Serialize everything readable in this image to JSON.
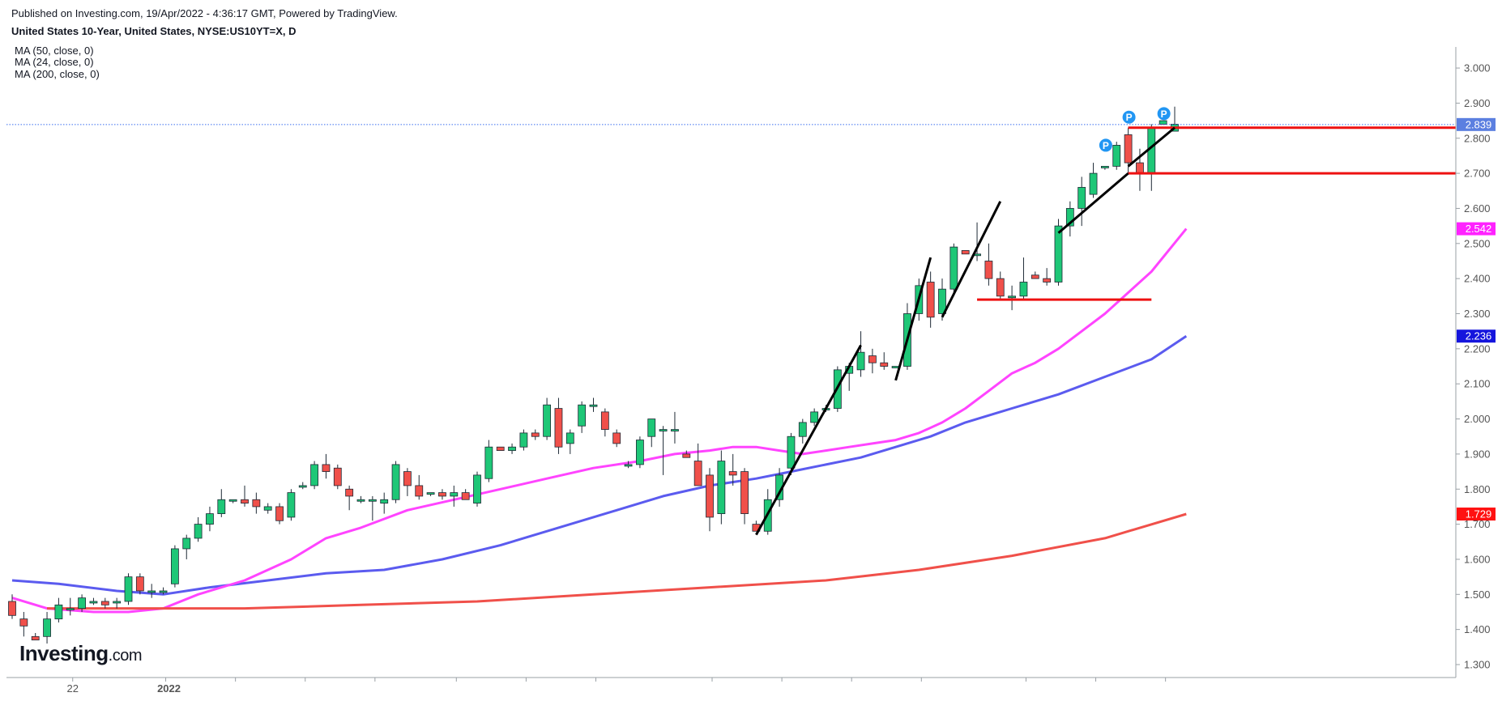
{
  "header": {
    "published": "Published on Investing.com, 19/Apr/2022 - 4:36:17 GMT, Powered by TradingView.",
    "title": "United States 10-Year, United States, NYSE:US10YT=X, D"
  },
  "legend": [
    {
      "label": "MA (50, close, 0)",
      "color": "#5b5bef"
    },
    {
      "label": "MA (24, close, 0)",
      "color": "#ff44ff"
    },
    {
      "label": "MA (200, close, 0)",
      "color": "#f0504a"
    }
  ],
  "logo": {
    "name": "Investing",
    "suffix": ".com"
  },
  "colors": {
    "up": "#1ec777",
    "down": "#f0504a",
    "wick": "#1e2a36",
    "ma50": "#5b5bef",
    "ma24": "#ff44ff",
    "ma200": "#f0504a",
    "hline": "#ee1111",
    "trend": "#000000",
    "pivot": "#2196f3",
    "axis": "#9aa0a6"
  },
  "chart_data": {
    "type": "candlestick",
    "title": "United States 10-Year, United States, NYSE:US10YT=X, D",
    "ylim": [
      1.26,
      3.06
    ],
    "y_ticks": [
      1.3,
      1.4,
      1.5,
      1.6,
      1.7,
      1.8,
      1.9,
      2.0,
      2.1,
      2.2,
      2.3,
      2.4,
      2.5,
      2.6,
      2.7,
      2.8,
      2.9,
      3.0
    ],
    "y_tick_labels": [
      "1.300",
      "1.400",
      "1.500",
      "1.600",
      "1.700",
      "1.800",
      "1.900",
      "2.000",
      "2.100",
      "2.200",
      "2.300",
      "2.400",
      "2.500",
      "2.600",
      "2.700",
      "2.800",
      "2.900",
      "3.000"
    ],
    "x_labels": [
      {
        "index": 5,
        "label": "22"
      },
      {
        "index": 13,
        "label": "2022"
      }
    ],
    "x_tick_indices": [
      5,
      13,
      19,
      25,
      31,
      38,
      44,
      50,
      60,
      66,
      72,
      78,
      87,
      93,
      99
    ],
    "candles": [
      {
        "o": 1.48,
        "h": 1.5,
        "l": 1.43,
        "c": 1.44
      },
      {
        "o": 1.43,
        "h": 1.45,
        "l": 1.38,
        "c": 1.41
      },
      {
        "o": 1.38,
        "h": 1.39,
        "l": 1.37,
        "c": 1.37
      },
      {
        "o": 1.38,
        "h": 1.45,
        "l": 1.36,
        "c": 1.43
      },
      {
        "o": 1.43,
        "h": 1.49,
        "l": 1.42,
        "c": 1.47
      },
      {
        "o": 1.46,
        "h": 1.49,
        "l": 1.44,
        "c": 1.46
      },
      {
        "o": 1.46,
        "h": 1.5,
        "l": 1.45,
        "c": 1.49
      },
      {
        "o": 1.48,
        "h": 1.49,
        "l": 1.47,
        "c": 1.48
      },
      {
        "o": 1.48,
        "h": 1.49,
        "l": 1.46,
        "c": 1.47
      },
      {
        "o": 1.48,
        "h": 1.49,
        "l": 1.46,
        "c": 1.48
      },
      {
        "o": 1.48,
        "h": 1.56,
        "l": 1.47,
        "c": 1.55
      },
      {
        "o": 1.55,
        "h": 1.56,
        "l": 1.5,
        "c": 1.51
      },
      {
        "o": 1.51,
        "h": 1.53,
        "l": 1.49,
        "c": 1.51
      },
      {
        "o": 1.51,
        "h": 1.52,
        "l": 1.5,
        "c": 1.51
      },
      {
        "o": 1.53,
        "h": 1.64,
        "l": 1.52,
        "c": 1.63
      },
      {
        "o": 1.63,
        "h": 1.67,
        "l": 1.6,
        "c": 1.66
      },
      {
        "o": 1.66,
        "h": 1.72,
        "l": 1.65,
        "c": 1.7
      },
      {
        "o": 1.7,
        "h": 1.75,
        "l": 1.68,
        "c": 1.73
      },
      {
        "o": 1.73,
        "h": 1.8,
        "l": 1.72,
        "c": 1.77
      },
      {
        "o": 1.77,
        "h": 1.77,
        "l": 1.76,
        "c": 1.77
      },
      {
        "o": 1.77,
        "h": 1.81,
        "l": 1.75,
        "c": 1.76
      },
      {
        "o": 1.77,
        "h": 1.79,
        "l": 1.73,
        "c": 1.75
      },
      {
        "o": 1.74,
        "h": 1.76,
        "l": 1.73,
        "c": 1.75
      },
      {
        "o": 1.75,
        "h": 1.76,
        "l": 1.7,
        "c": 1.71
      },
      {
        "o": 1.72,
        "h": 1.8,
        "l": 1.71,
        "c": 1.79
      },
      {
        "o": 1.81,
        "h": 1.82,
        "l": 1.8,
        "c": 1.81
      },
      {
        "o": 1.81,
        "h": 1.88,
        "l": 1.8,
        "c": 1.87
      },
      {
        "o": 1.87,
        "h": 1.9,
        "l": 1.83,
        "c": 1.85
      },
      {
        "o": 1.86,
        "h": 1.87,
        "l": 1.8,
        "c": 1.81
      },
      {
        "o": 1.8,
        "h": 1.81,
        "l": 1.74,
        "c": 1.78
      },
      {
        "o": 1.77,
        "h": 1.78,
        "l": 1.76,
        "c": 1.77
      },
      {
        "o": 1.77,
        "h": 1.78,
        "l": 1.71,
        "c": 1.77
      },
      {
        "o": 1.76,
        "h": 1.79,
        "l": 1.73,
        "c": 1.77
      },
      {
        "o": 1.77,
        "h": 1.88,
        "l": 1.76,
        "c": 1.87
      },
      {
        "o": 1.85,
        "h": 1.86,
        "l": 1.78,
        "c": 1.81
      },
      {
        "o": 1.81,
        "h": 1.84,
        "l": 1.77,
        "c": 1.78
      },
      {
        "o": 1.79,
        "h": 1.79,
        "l": 1.78,
        "c": 1.79
      },
      {
        "o": 1.79,
        "h": 1.8,
        "l": 1.77,
        "c": 1.78
      },
      {
        "o": 1.78,
        "h": 1.81,
        "l": 1.75,
        "c": 1.79
      },
      {
        "o": 1.79,
        "h": 1.8,
        "l": 1.77,
        "c": 1.77
      },
      {
        "o": 1.76,
        "h": 1.85,
        "l": 1.75,
        "c": 1.84
      },
      {
        "o": 1.83,
        "h": 1.94,
        "l": 1.82,
        "c": 1.92
      },
      {
        "o": 1.92,
        "h": 1.92,
        "l": 1.91,
        "c": 1.91
      },
      {
        "o": 1.91,
        "h": 1.93,
        "l": 1.9,
        "c": 1.92
      },
      {
        "o": 1.92,
        "h": 1.97,
        "l": 1.91,
        "c": 1.96
      },
      {
        "o": 1.96,
        "h": 1.97,
        "l": 1.94,
        "c": 1.95
      },
      {
        "o": 1.95,
        "h": 2.06,
        "l": 1.94,
        "c": 2.04
      },
      {
        "o": 2.03,
        "h": 2.06,
        "l": 1.9,
        "c": 1.92
      },
      {
        "o": 1.93,
        "h": 1.97,
        "l": 1.9,
        "c": 1.96
      },
      {
        "o": 1.98,
        "h": 2.05,
        "l": 1.96,
        "c": 2.04
      },
      {
        "o": 2.04,
        "h": 2.06,
        "l": 2.02,
        "c": 2.04
      },
      {
        "o": 2.02,
        "h": 2.03,
        "l": 1.95,
        "c": 1.97
      },
      {
        "o": 1.96,
        "h": 1.97,
        "l": 1.92,
        "c": 1.93
      },
      {
        "o": 1.87,
        "h": 1.88,
        "l": 1.86,
        "c": 1.87
      },
      {
        "o": 1.87,
        "h": 1.95,
        "l": 1.86,
        "c": 1.94
      },
      {
        "o": 1.95,
        "h": 2.0,
        "l": 1.92,
        "c": 2.0
      },
      {
        "o": 1.97,
        "h": 1.98,
        "l": 1.84,
        "c": 1.97
      },
      {
        "o": 1.97,
        "h": 2.02,
        "l": 1.93,
        "c": 1.97
      },
      {
        "o": 1.9,
        "h": 1.91,
        "l": 1.89,
        "c": 1.89
      },
      {
        "o": 1.88,
        "h": 1.93,
        "l": 1.82,
        "c": 1.81
      },
      {
        "o": 1.84,
        "h": 1.86,
        "l": 1.68,
        "c": 1.72
      },
      {
        "o": 1.73,
        "h": 1.91,
        "l": 1.7,
        "c": 1.88
      },
      {
        "o": 1.85,
        "h": 1.9,
        "l": 1.81,
        "c": 1.84
      },
      {
        "o": 1.85,
        "h": 1.86,
        "l": 1.7,
        "c": 1.73
      },
      {
        "o": 1.7,
        "h": 1.71,
        "l": 1.68,
        "c": 1.68
      },
      {
        "o": 1.68,
        "h": 1.8,
        "l": 1.67,
        "c": 1.77
      },
      {
        "o": 1.77,
        "h": 1.86,
        "l": 1.75,
        "c": 1.84
      },
      {
        "o": 1.86,
        "h": 1.96,
        "l": 1.84,
        "c": 1.95
      },
      {
        "o": 1.95,
        "h": 2.0,
        "l": 1.93,
        "c": 1.99
      },
      {
        "o": 1.99,
        "h": 2.03,
        "l": 1.98,
        "c": 2.02
      },
      {
        "o": 2.03,
        "h": 2.04,
        "l": 2.02,
        "c": 2.03
      },
      {
        "o": 2.03,
        "h": 2.15,
        "l": 2.02,
        "c": 2.14
      },
      {
        "o": 2.13,
        "h": 2.16,
        "l": 2.08,
        "c": 2.15
      },
      {
        "o": 2.14,
        "h": 2.25,
        "l": 2.12,
        "c": 2.19
      },
      {
        "o": 2.18,
        "h": 2.2,
        "l": 2.13,
        "c": 2.16
      },
      {
        "o": 2.16,
        "h": 2.19,
        "l": 2.14,
        "c": 2.15
      },
      {
        "o": 2.15,
        "h": 2.15,
        "l": 2.15,
        "c": 2.15
      },
      {
        "o": 2.15,
        "h": 2.33,
        "l": 2.14,
        "c": 2.3
      },
      {
        "o": 2.3,
        "h": 2.4,
        "l": 2.28,
        "c": 2.38
      },
      {
        "o": 2.39,
        "h": 2.42,
        "l": 2.26,
        "c": 2.29
      },
      {
        "o": 2.3,
        "h": 2.4,
        "l": 2.28,
        "c": 2.37
      },
      {
        "o": 2.37,
        "h": 2.5,
        "l": 2.35,
        "c": 2.49
      },
      {
        "o": 2.48,
        "h": 2.48,
        "l": 2.47,
        "c": 2.47
      },
      {
        "o": 2.47,
        "h": 2.56,
        "l": 2.45,
        "c": 2.47
      },
      {
        "o": 2.45,
        "h": 2.5,
        "l": 2.38,
        "c": 2.4
      },
      {
        "o": 2.4,
        "h": 2.42,
        "l": 2.34,
        "c": 2.35
      },
      {
        "o": 2.35,
        "h": 2.38,
        "l": 2.31,
        "c": 2.35
      },
      {
        "o": 2.35,
        "h": 2.46,
        "l": 2.34,
        "c": 2.39
      },
      {
        "o": 2.41,
        "h": 2.42,
        "l": 2.4,
        "c": 2.4
      },
      {
        "o": 2.4,
        "h": 2.43,
        "l": 2.38,
        "c": 2.39
      },
      {
        "o": 2.39,
        "h": 2.57,
        "l": 2.38,
        "c": 2.55
      },
      {
        "o": 2.55,
        "h": 2.62,
        "l": 2.52,
        "c": 2.6
      },
      {
        "o": 2.6,
        "h": 2.69,
        "l": 2.55,
        "c": 2.66
      },
      {
        "o": 2.64,
        "h": 2.73,
        "l": 2.63,
        "c": 2.7
      },
      {
        "o": 2.72,
        "h": 2.72,
        "l": 2.71,
        "c": 2.72
      },
      {
        "o": 2.72,
        "h": 2.79,
        "l": 2.71,
        "c": 2.78
      },
      {
        "o": 2.81,
        "h": 2.83,
        "l": 2.7,
        "c": 2.73
      },
      {
        "o": 2.73,
        "h": 2.77,
        "l": 2.65,
        "c": 2.7
      },
      {
        "o": 2.7,
        "h": 2.84,
        "l": 2.65,
        "c": 2.83
      },
      {
        "o": 2.84,
        "h": 2.85,
        "l": 2.84,
        "c": 2.85
      },
      {
        "o": 2.82,
        "h": 2.89,
        "l": 2.82,
        "c": 2.84
      }
    ],
    "series": [
      {
        "name": "MA (50, close, 0)",
        "value": 2.236,
        "keys": [
          [
            0,
            1.54
          ],
          [
            4,
            1.53
          ],
          [
            9,
            1.51
          ],
          [
            13,
            1.5
          ],
          [
            17,
            1.52
          ],
          [
            22,
            1.54
          ],
          [
            27,
            1.56
          ],
          [
            32,
            1.57
          ],
          [
            37,
            1.6
          ],
          [
            42,
            1.64
          ],
          [
            47,
            1.69
          ],
          [
            52,
            1.74
          ],
          [
            56,
            1.78
          ],
          [
            60,
            1.81
          ],
          [
            64,
            1.83
          ],
          [
            67,
            1.85
          ],
          [
            70,
            1.87
          ],
          [
            73,
            1.89
          ],
          [
            76,
            1.92
          ],
          [
            79,
            1.95
          ],
          [
            82,
            1.99
          ],
          [
            86,
            2.03
          ],
          [
            90,
            2.07
          ],
          [
            94,
            2.12
          ],
          [
            98,
            2.17
          ],
          [
            101,
            2.236
          ]
        ]
      },
      {
        "name": "MA (24, close, 0)",
        "value": 2.542,
        "keys": [
          [
            0,
            1.49
          ],
          [
            3,
            1.46
          ],
          [
            7,
            1.45
          ],
          [
            10,
            1.45
          ],
          [
            13,
            1.46
          ],
          [
            16,
            1.5
          ],
          [
            20,
            1.54
          ],
          [
            24,
            1.6
          ],
          [
            27,
            1.66
          ],
          [
            30,
            1.69
          ],
          [
            34,
            1.74
          ],
          [
            38,
            1.77
          ],
          [
            42,
            1.8
          ],
          [
            46,
            1.83
          ],
          [
            50,
            1.86
          ],
          [
            54,
            1.88
          ],
          [
            57,
            1.9
          ],
          [
            60,
            1.91
          ],
          [
            62,
            1.92
          ],
          [
            64,
            1.92
          ],
          [
            66,
            1.91
          ],
          [
            68,
            1.9
          ],
          [
            70,
            1.91
          ],
          [
            72,
            1.92
          ],
          [
            74,
            1.93
          ],
          [
            76,
            1.94
          ],
          [
            78,
            1.96
          ],
          [
            80,
            1.99
          ],
          [
            82,
            2.03
          ],
          [
            84,
            2.08
          ],
          [
            86,
            2.13
          ],
          [
            88,
            2.16
          ],
          [
            90,
            2.2
          ],
          [
            92,
            2.25
          ],
          [
            94,
            2.3
          ],
          [
            96,
            2.36
          ],
          [
            98,
            2.42
          ],
          [
            101,
            2.542
          ]
        ]
      },
      {
        "name": "MA (200, close, 0)",
        "value": 1.729,
        "keys": [
          [
            3,
            1.46
          ],
          [
            10,
            1.46
          ],
          [
            20,
            1.46
          ],
          [
            30,
            1.47
          ],
          [
            40,
            1.48
          ],
          [
            50,
            1.5
          ],
          [
            60,
            1.52
          ],
          [
            70,
            1.54
          ],
          [
            78,
            1.57
          ],
          [
            86,
            1.61
          ],
          [
            94,
            1.66
          ],
          [
            101,
            1.729
          ]
        ]
      }
    ],
    "last_price": 2.839,
    "horizontal_levels": [
      {
        "value": 2.83,
        "from": 96,
        "to": 102
      },
      {
        "value": 2.7,
        "from": 96,
        "to": 102
      },
      {
        "value": 2.34,
        "from": 83,
        "to": 98
      }
    ],
    "trend_lines": [
      [
        [
          64,
          1.67
        ],
        [
          73,
          2.21
        ]
      ],
      [
        [
          76,
          2.11
        ],
        [
          79,
          2.46
        ]
      ],
      [
        [
          80,
          2.29
        ],
        [
          85,
          2.62
        ]
      ],
      [
        [
          90,
          2.53
        ],
        [
          96,
          2.7
        ]
      ],
      [
        [
          96,
          2.72
        ],
        [
          100,
          2.83
        ]
      ]
    ],
    "pivot_markers": [
      {
        "index": 94,
        "value": 2.78,
        "label": "P"
      },
      {
        "index": 96,
        "value": 2.86,
        "label": "P"
      },
      {
        "index": 99,
        "value": 2.87,
        "label": "P"
      }
    ]
  }
}
